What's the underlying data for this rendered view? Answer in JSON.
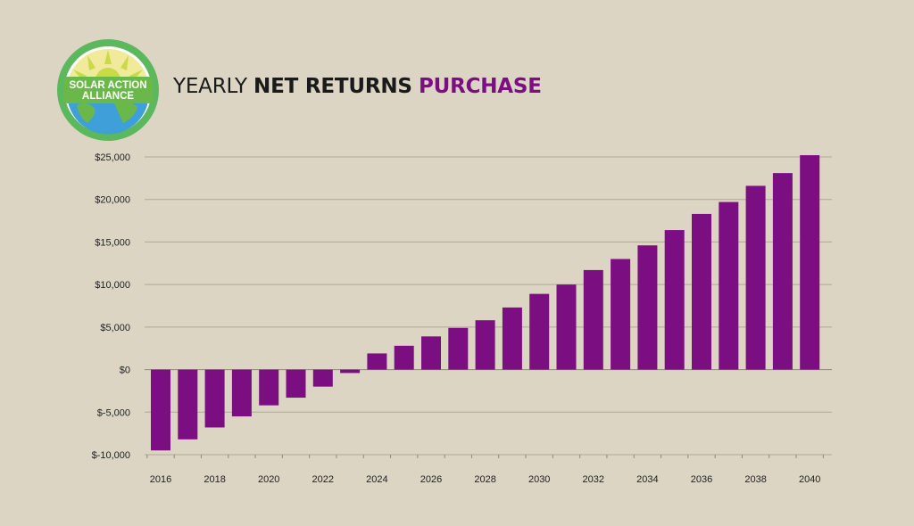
{
  "logo": {
    "line1": "SOLAR ACTION",
    "line2": "ALLIANCE",
    "icon": "sun-globe-icon"
  },
  "title": {
    "part1": "YEARLY",
    "part2": "NET RETURNS",
    "part3": "PURCHASE"
  },
  "colors": {
    "background": "#dcd5c4",
    "bar": "#7b0e80",
    "accent": "#7b0e80",
    "grid": "#b0a995",
    "logo_ring": "#5cb85c",
    "logo_sky": "#f1ea9a"
  },
  "chart_data": {
    "type": "bar",
    "title": "YEARLY NET RETURNS PURCHASE",
    "xlabel": "",
    "ylabel": "",
    "categories": [
      "2016",
      "2017",
      "2018",
      "2019",
      "2020",
      "2021",
      "2022",
      "2023",
      "2024",
      "2025",
      "2026",
      "2027",
      "2028",
      "2029",
      "2030",
      "2031",
      "2032",
      "2033",
      "2034",
      "2035",
      "2036",
      "2037",
      "2038",
      "2039",
      "2040"
    ],
    "values": [
      -9500,
      -8200,
      -6800,
      -5500,
      -4200,
      -3300,
      -2000,
      -400,
      1900,
      2800,
      3900,
      4900,
      5800,
      7300,
      8900,
      10000,
      11700,
      13000,
      14600,
      16400,
      18300,
      19700,
      21600,
      23100,
      25200
    ],
    "x_tick_labels": [
      "2016",
      "2018",
      "2020",
      "2022",
      "2024",
      "2026",
      "2028",
      "2030",
      "2032",
      "2034",
      "2036",
      "2038",
      "2040"
    ],
    "y_ticks": [
      -10000,
      -5000,
      0,
      5000,
      10000,
      15000,
      20000,
      25000
    ],
    "y_tick_labels": [
      "$-10,000",
      "$-5,000",
      "$0",
      "$5,000",
      "$10,000",
      "$15,000",
      "$20,000",
      "$25,000"
    ],
    "ylim": [
      -10000,
      25000
    ],
    "grid": true,
    "legend": "none"
  }
}
